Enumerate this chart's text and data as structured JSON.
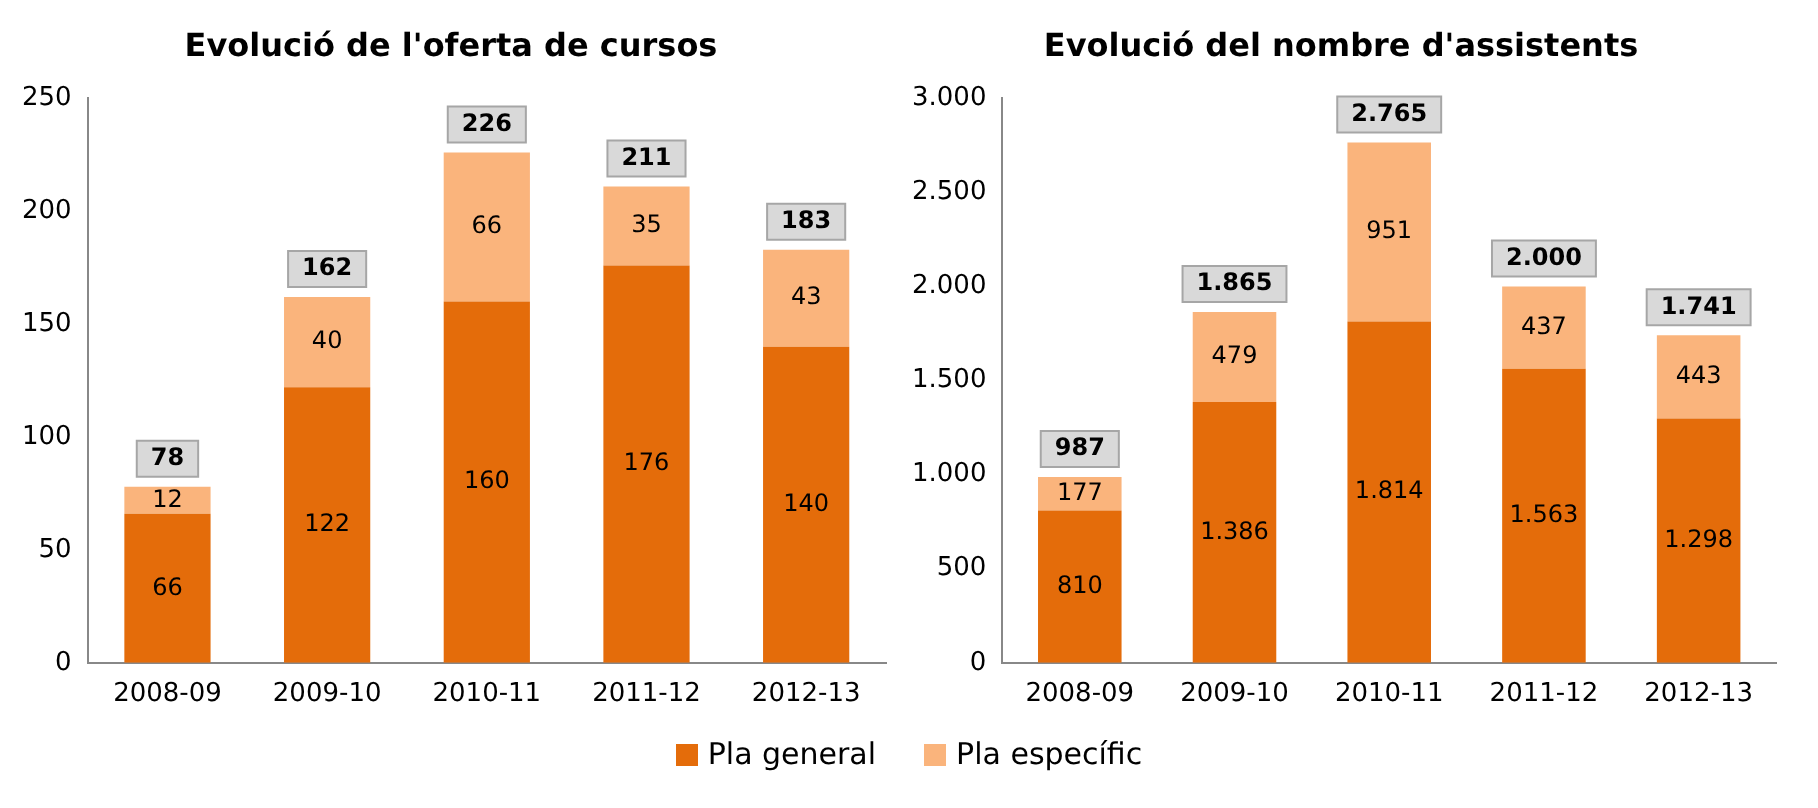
{
  "chart_data": [
    {
      "type": "bar",
      "title": "Evolució de l'oferta de cursos",
      "categories": [
        "2008-09",
        "2009-10",
        "2010-11",
        "2011-12",
        "2012-13"
      ],
      "stacked": true,
      "series": [
        {
          "name": "Pla general",
          "color": "#e46c0a",
          "values": [
            66,
            122,
            160,
            176,
            140
          ]
        },
        {
          "name": "Pla específic",
          "color": "#fab47c",
          "values": [
            12,
            40,
            66,
            35,
            43
          ]
        }
      ],
      "ylim": [
        0,
        250
      ],
      "yticks": [
        0,
        50,
        100,
        150,
        200,
        250
      ],
      "data_labels": true,
      "totals": [
        "78",
        "162",
        "226",
        "211",
        "183"
      ],
      "legend": "bottom"
    },
    {
      "type": "bar",
      "title": "Evolució del nombre d'assistents",
      "categories": [
        "2008-09",
        "2009-10",
        "2010-11",
        "2011-12",
        "2012-13"
      ],
      "stacked": true,
      "series": [
        {
          "color": "#e46c0a",
          "values": [
            810,
            1386,
            1814,
            1563,
            1298
          ],
          "value_labels": [
            "810",
            "1.386",
            "1.814",
            "1.563",
            "1.298"
          ]
        },
        {
          "color": "#fab47c",
          "values": [
            177,
            479,
            951,
            437,
            443
          ],
          "value_labels": [
            "177",
            "479",
            "951",
            "437",
            "443"
          ]
        }
      ],
      "ylim": [
        0,
        3000
      ],
      "yticks": [
        {
          "value": 0,
          "label": "0"
        },
        {
          "value": 500,
          "label": "500"
        },
        {
          "value": 1000,
          "label": "1.000"
        },
        {
          "value": 1500,
          "label": "1.500"
        },
        {
          "value": 2000,
          "label": "2.000"
        },
        {
          "value": 2500,
          "label": "2.500"
        },
        {
          "value": 3000,
          "label": "3.000"
        }
      ],
      "totals": [
        "987",
        "1.865",
        "2.765",
        "2.000",
        "1.741"
      ]
    }
  ]
}
